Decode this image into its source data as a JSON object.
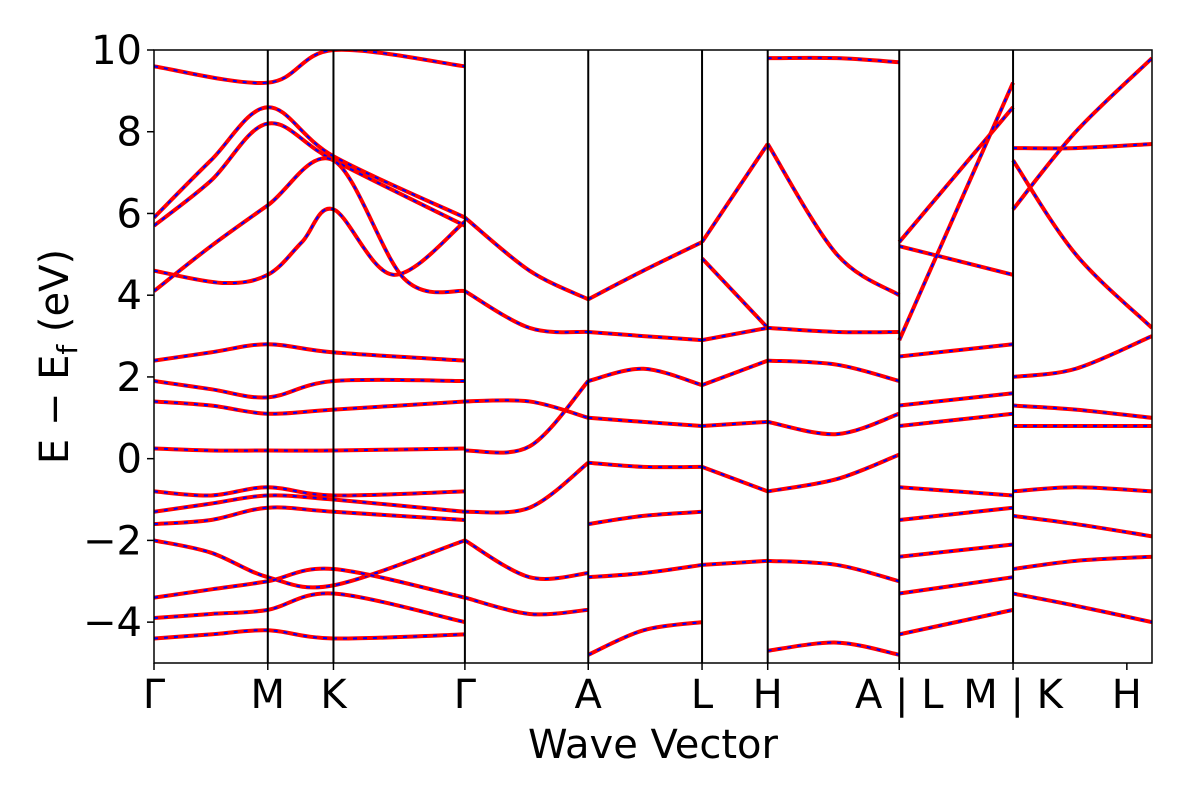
{
  "chart_data": {
    "type": "line",
    "title": "",
    "xlabel": "Wave Vector",
    "ylabel": "E − E_f (eV)",
    "ylabel_parts": {
      "main": "E − E",
      "sub": "f",
      "unit": "(eV)"
    },
    "ylim": [
      -5,
      10
    ],
    "yticks": [
      -4,
      -2,
      0,
      2,
      4,
      6,
      8,
      10
    ],
    "ytick_labels": [
      "−4",
      "−2",
      "0",
      "2",
      "4",
      "6",
      "8",
      "10"
    ],
    "xticks": [
      0,
      1,
      1.577,
      2.732,
      3.816,
      4.816,
      5.393,
      6.549,
      7.549,
      8.549
    ],
    "xtick_labels": [
      "Γ",
      "M",
      "K",
      "Γ",
      "A",
      "L",
      "H",
      "A | L",
      "M | K",
      "H"
    ],
    "xlim": [
      0,
      8.77
    ],
    "grid": false,
    "legend": "none",
    "colors": {
      "line": "#ff0000",
      "dash": "#0000ff",
      "axis": "#000000"
    },
    "series": [
      {
        "x": [
          0,
          1,
          1.577,
          2.732
        ],
        "values": [
          9.6,
          9.2,
          10.0,
          9.6
        ]
      },
      {
        "x": [
          0,
          0.5,
          1,
          1.577,
          2.732
        ],
        "values": [
          5.9,
          7.3,
          8.6,
          7.4,
          5.9
        ]
      },
      {
        "x": [
          0,
          0.5,
          1,
          1.577,
          2.732
        ],
        "values": [
          5.7,
          6.8,
          8.2,
          7.3,
          5.7
        ]
      },
      {
        "x": [
          0,
          0.6,
          1,
          1.3,
          1.577,
          2.1,
          2.732
        ],
        "values": [
          4.6,
          4.3,
          4.5,
          5.3,
          6.1,
          4.5,
          5.8
        ]
      },
      {
        "x": [
          0,
          0.5,
          1,
          1.577,
          2.2,
          2.732
        ],
        "values": [
          4.1,
          5.2,
          6.2,
          7.3,
          4.4,
          4.1
        ]
      },
      {
        "x": [
          0,
          0.5,
          1,
          1.577,
          2.732
        ],
        "values": [
          2.4,
          2.6,
          2.8,
          2.6,
          2.4
        ]
      },
      {
        "x": [
          0,
          0.5,
          1,
          1.577,
          2.732
        ],
        "values": [
          1.9,
          1.7,
          1.5,
          1.9,
          1.9
        ]
      },
      {
        "x": [
          0,
          0.5,
          1,
          1.577,
          2.732
        ],
        "values": [
          1.4,
          1.3,
          1.1,
          1.2,
          1.4
        ]
      },
      {
        "x": [
          0,
          0.5,
          1,
          1.577,
          2.732
        ],
        "values": [
          0.25,
          0.2,
          0.2,
          0.2,
          0.25
        ]
      },
      {
        "x": [
          0,
          0.5,
          1,
          1.577,
          2.732
        ],
        "values": [
          -0.8,
          -0.9,
          -0.7,
          -0.9,
          -0.8
        ]
      },
      {
        "x": [
          0,
          0.5,
          1,
          1.577,
          2.732
        ],
        "values": [
          -1.3,
          -1.1,
          -0.9,
          -1.0,
          -1.3
        ]
      },
      {
        "x": [
          0,
          0.5,
          1,
          1.577,
          2.732
        ],
        "values": [
          -1.6,
          -1.5,
          -1.2,
          -1.3,
          -1.5
        ]
      },
      {
        "x": [
          0,
          0.5,
          1,
          1.577,
          2.732
        ],
        "values": [
          -2.0,
          -2.3,
          -2.9,
          -3.1,
          -2.0
        ]
      },
      {
        "x": [
          0,
          0.5,
          1,
          1.577,
          2.732
        ],
        "values": [
          -3.4,
          -3.2,
          -3.0,
          -2.7,
          -3.4
        ]
      },
      {
        "x": [
          0,
          0.5,
          1,
          1.577,
          2.732
        ],
        "values": [
          -3.9,
          -3.8,
          -3.7,
          -3.3,
          -4.0
        ]
      },
      {
        "x": [
          0,
          0.5,
          1,
          1.577,
          2.732
        ],
        "values": [
          -4.4,
          -4.3,
          -4.2,
          -4.4,
          -4.3
        ]
      },
      {
        "x": [
          2.732,
          3.3,
          3.816
        ],
        "values": [
          5.9,
          4.6,
          3.9
        ]
      },
      {
        "x": [
          2.732,
          3.3,
          3.816
        ],
        "values": [
          4.1,
          3.2,
          3.1
        ]
      },
      {
        "x": [
          2.732,
          3.3,
          3.816
        ],
        "values": [
          1.4,
          1.4,
          1.0
        ]
      },
      {
        "x": [
          2.732,
          3.3,
          3.816
        ],
        "values": [
          0.2,
          0.3,
          1.9
        ]
      },
      {
        "x": [
          2.732,
          3.3,
          3.816
        ],
        "values": [
          -1.3,
          -1.2,
          -0.1
        ]
      },
      {
        "x": [
          2.732,
          3.3,
          3.816
        ],
        "values": [
          -2.0,
          -2.9,
          -2.8
        ]
      },
      {
        "x": [
          2.732,
          3.3,
          3.816
        ],
        "values": [
          -3.4,
          -3.8,
          -3.7
        ]
      },
      {
        "x": [
          3.816,
          4.3,
          4.816
        ],
        "values": [
          3.9,
          4.6,
          5.3
        ]
      },
      {
        "x": [
          3.816,
          4.3,
          4.816
        ],
        "values": [
          3.1,
          3.0,
          2.9
        ]
      },
      {
        "x": [
          3.816,
          4.3,
          4.816
        ],
        "values": [
          1.9,
          2.2,
          1.8
        ]
      },
      {
        "x": [
          3.816,
          4.3,
          4.816
        ],
        "values": [
          1.0,
          0.9,
          0.8
        ]
      },
      {
        "x": [
          3.816,
          4.3,
          4.816
        ],
        "values": [
          -0.1,
          -0.2,
          -0.2
        ]
      },
      {
        "x": [
          3.816,
          4.3,
          4.816
        ],
        "values": [
          -1.6,
          -1.4,
          -1.3
        ]
      },
      {
        "x": [
          3.816,
          4.3,
          4.816
        ],
        "values": [
          -2.9,
          -2.8,
          -2.6
        ]
      },
      {
        "x": [
          3.816,
          4.3,
          4.816
        ],
        "values": [
          -4.8,
          -4.2,
          -4.0
        ]
      },
      {
        "x": [
          4.816,
          5.393
        ],
        "values": [
          5.3,
          7.7
        ]
      },
      {
        "x": [
          4.816,
          5.393
        ],
        "values": [
          4.9,
          3.2
        ]
      },
      {
        "x": [
          4.816,
          5.393
        ],
        "values": [
          2.9,
          3.2
        ]
      },
      {
        "x": [
          4.816,
          5.393
        ],
        "values": [
          1.8,
          2.4
        ]
      },
      {
        "x": [
          4.816,
          5.393
        ],
        "values": [
          0.8,
          0.9
        ]
      },
      {
        "x": [
          4.816,
          5.393
        ],
        "values": [
          -0.2,
          -0.8
        ]
      },
      {
        "x": [
          4.816,
          5.393
        ],
        "values": [
          -2.6,
          -2.5
        ]
      },
      {
        "x": [
          5.393,
          6.0,
          6.549
        ],
        "values": [
          9.8,
          9.8,
          9.7
        ]
      },
      {
        "x": [
          5.393,
          6.0,
          6.549
        ],
        "values": [
          7.7,
          5.0,
          4.0
        ]
      },
      {
        "x": [
          5.393,
          6.0,
          6.549
        ],
        "values": [
          3.2,
          3.1,
          3.1
        ]
      },
      {
        "x": [
          5.393,
          6.0,
          6.549
        ],
        "values": [
          2.4,
          2.3,
          1.9
        ]
      },
      {
        "x": [
          5.393,
          6.0,
          6.549
        ],
        "values": [
          0.9,
          0.6,
          1.1
        ]
      },
      {
        "x": [
          5.393,
          6.0,
          6.549
        ],
        "values": [
          -0.8,
          -0.5,
          0.1
        ]
      },
      {
        "x": [
          5.393,
          6.0,
          6.549
        ],
        "values": [
          -2.5,
          -2.6,
          -3.0
        ]
      },
      {
        "x": [
          5.393,
          6.0,
          6.549
        ],
        "values": [
          -4.7,
          -4.5,
          -4.8
        ]
      },
      {
        "x": [
          6.549,
          7.549
        ],
        "values": [
          5.3,
          8.6
        ]
      },
      {
        "x": [
          6.549,
          7.549
        ],
        "values": [
          5.2,
          4.5
        ]
      },
      {
        "x": [
          6.549,
          7.549
        ],
        "values": [
          2.9,
          9.2
        ]
      },
      {
        "x": [
          6.549,
          7.549
        ],
        "values": [
          2.5,
          2.8
        ]
      },
      {
        "x": [
          6.549,
          7.549
        ],
        "values": [
          1.3,
          1.6
        ]
      },
      {
        "x": [
          6.549,
          7.549
        ],
        "values": [
          0.8,
          1.1
        ]
      },
      {
        "x": [
          6.549,
          7.549
        ],
        "values": [
          -0.7,
          -0.9
        ]
      },
      {
        "x": [
          6.549,
          7.549
        ],
        "values": [
          -1.5,
          -1.2
        ]
      },
      {
        "x": [
          6.549,
          7.549
        ],
        "values": [
          -2.4,
          -2.1
        ]
      },
      {
        "x": [
          6.549,
          7.549
        ],
        "values": [
          -3.3,
          -2.9
        ]
      },
      {
        "x": [
          6.549,
          7.549
        ],
        "values": [
          -4.3,
          -3.7
        ]
      },
      {
        "x": [
          7.549,
          8.1,
          8.77
        ],
        "values": [
          7.6,
          7.6,
          7.7
        ]
      },
      {
        "x": [
          7.549,
          8.1,
          8.77
        ],
        "values": [
          7.3,
          5.0,
          3.2
        ]
      },
      {
        "x": [
          7.549,
          8.1,
          8.77
        ],
        "values": [
          6.1,
          8.0,
          9.8
        ]
      },
      {
        "x": [
          7.549,
          8.1,
          8.77
        ],
        "values": [
          2.0,
          2.2,
          3.0
        ]
      },
      {
        "x": [
          7.549,
          8.1,
          8.77
        ],
        "values": [
          1.3,
          1.2,
          1.0
        ]
      },
      {
        "x": [
          7.549,
          8.1,
          8.77
        ],
        "values": [
          0.8,
          0.8,
          0.8
        ]
      },
      {
        "x": [
          7.549,
          8.1,
          8.77
        ],
        "values": [
          -0.8,
          -0.7,
          -0.8
        ]
      },
      {
        "x": [
          7.549,
          8.1,
          8.77
        ],
        "values": [
          -1.4,
          -1.6,
          -1.9
        ]
      },
      {
        "x": [
          7.549,
          8.1,
          8.77
        ],
        "values": [
          -2.7,
          -2.5,
          -2.4
        ]
      },
      {
        "x": [
          7.549,
          8.1,
          8.77
        ],
        "values": [
          -3.3,
          -3.6,
          -4.0
        ]
      }
    ]
  }
}
